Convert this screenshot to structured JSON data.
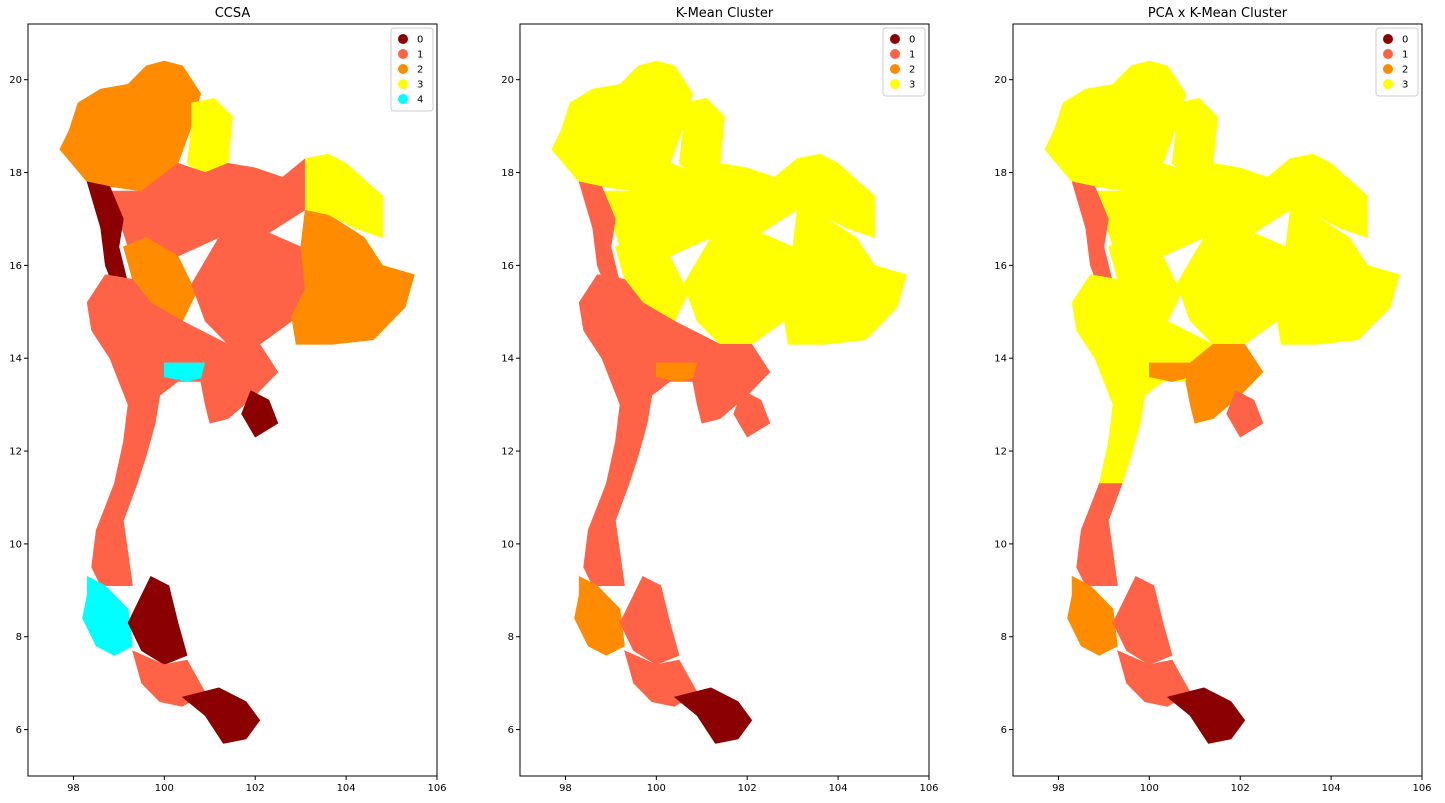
{
  "panels": [
    {
      "title": "CCSA",
      "legend": [
        {
          "label": "0",
          "color": "#8b0000"
        },
        {
          "label": "1",
          "color": "#ff6347"
        },
        {
          "label": "2",
          "color": "#ff8c00"
        },
        {
          "label": "3",
          "color": "#ffff00"
        },
        {
          "label": "4",
          "color": "#00ffff"
        }
      ],
      "regions": {
        "far_north": 2,
        "northeast_top": 3,
        "north": 1,
        "lower_north": 2,
        "northeast": 1,
        "east_isan": 2,
        "far_east": 3,
        "western_border": 0,
        "central": 1,
        "bangkok": 4,
        "eastern": 1,
        "chanthaburi": 0,
        "south_upper": 1,
        "south_west": 4,
        "south_east": 0,
        "deep_south": 0,
        "songkhla": 1
      }
    },
    {
      "title": "K-Mean Cluster",
      "legend": [
        {
          "label": "0",
          "color": "#8b0000"
        },
        {
          "label": "1",
          "color": "#ff6347"
        },
        {
          "label": "2",
          "color": "#ff8c00"
        },
        {
          "label": "3",
          "color": "#ffff00"
        }
      ],
      "regions": {
        "far_north": 3,
        "northeast_top": 3,
        "north": 3,
        "lower_north": 3,
        "northeast": 3,
        "east_isan": 3,
        "far_east": 3,
        "western_border": 1,
        "central": 1,
        "bangkok": 2,
        "eastern": 1,
        "chanthaburi": 1,
        "south_upper": 1,
        "south_west": 2,
        "south_east": 1,
        "deep_south": 0,
        "songkhla": 1
      }
    },
    {
      "title": "PCA x K-Mean Cluster",
      "legend": [
        {
          "label": "0",
          "color": "#8b0000"
        },
        {
          "label": "1",
          "color": "#ff6347"
        },
        {
          "label": "2",
          "color": "#ff8c00"
        },
        {
          "label": "3",
          "color": "#ffff00"
        }
      ],
      "regions": {
        "far_north": 3,
        "northeast_top": 3,
        "north": 3,
        "lower_north": 3,
        "northeast": 3,
        "east_isan": 3,
        "far_east": 3,
        "western_border": 1,
        "central": 3,
        "bangkok": 2,
        "eastern": 2,
        "chanthaburi": 1,
        "south_upper": 1,
        "south_west": 2,
        "south_east": 1,
        "deep_south": 0,
        "songkhla": 1
      }
    }
  ],
  "axes": {
    "x_ticks": [
      "98",
      "100",
      "102",
      "104",
      "106"
    ],
    "y_ticks": [
      "6",
      "8",
      "10",
      "12",
      "14",
      "16",
      "18",
      "20"
    ]
  }
}
